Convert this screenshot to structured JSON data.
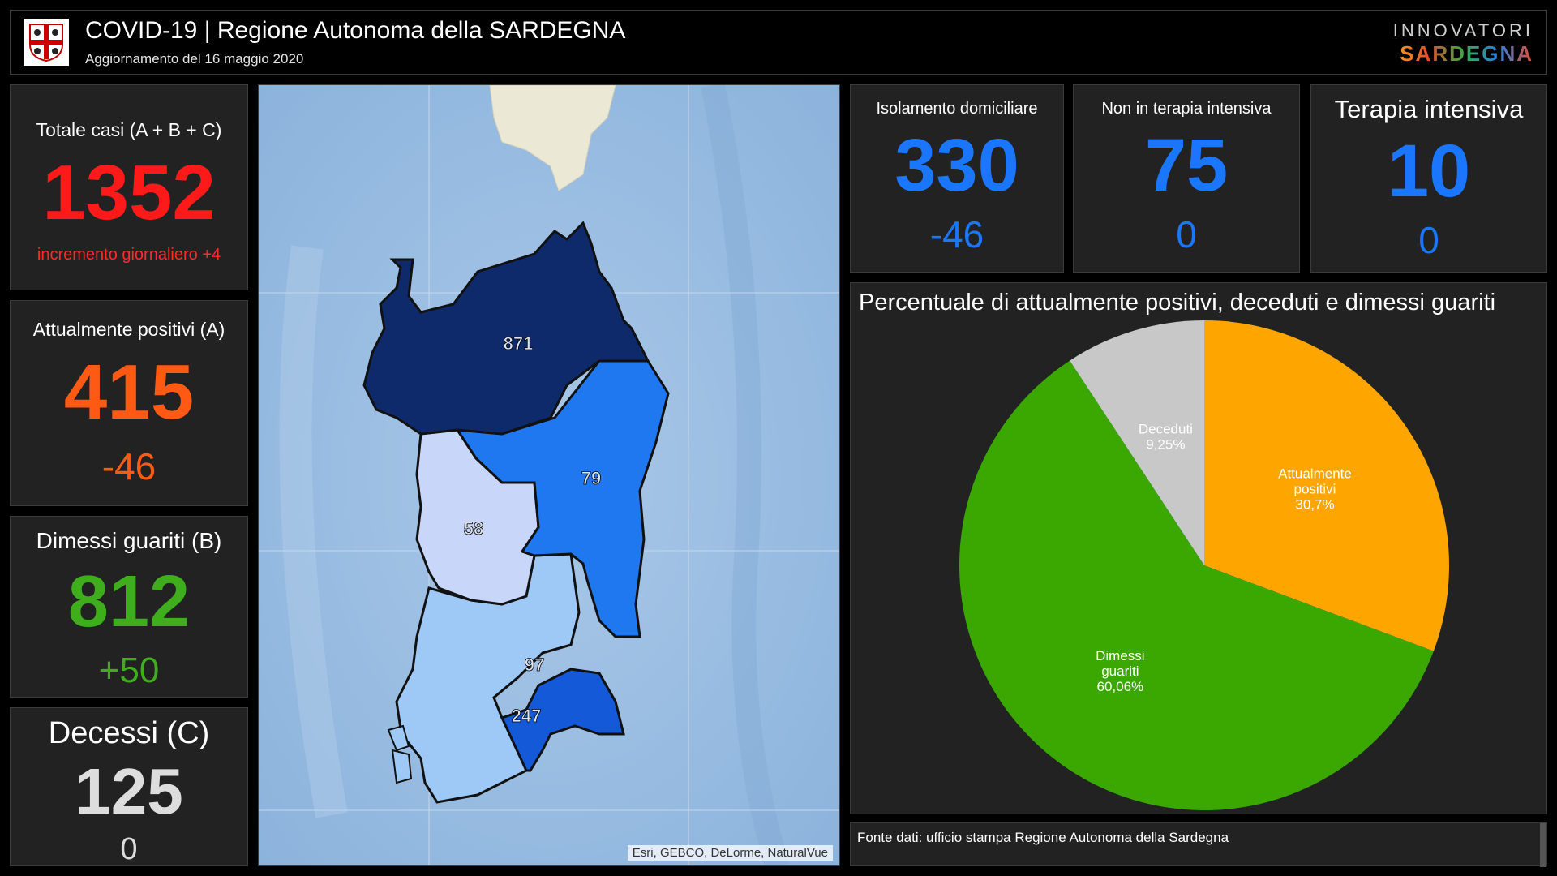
{
  "header": {
    "title": "COVID-19 | Regione Autonoma della SARDEGNA",
    "subtitle": "Aggiornamento del 16 maggio 2020",
    "brand_top": "INNOVATORI",
    "brand_bottom": "SARDEGNA"
  },
  "left_cards": {
    "totale": {
      "label": "Totale casi (A + B + C)",
      "value": "1352",
      "delta": "incremento giornaliero +4",
      "color": "#ff1a1a"
    },
    "positivi": {
      "label": "Attualmente positivi (A)",
      "value": "415",
      "delta": "-46",
      "color": "#ff5a14"
    },
    "guariti": {
      "label": "Dimessi guariti (B)",
      "value": "812",
      "delta": "+50",
      "color": "#3fae1c"
    },
    "decessi": {
      "label": "Decessi (C)",
      "value": "125",
      "delta": "0",
      "color": "#dddddd"
    }
  },
  "top_cards": {
    "isolamento": {
      "label": "Isolamento domiciliare",
      "value": "330",
      "delta": "-46",
      "color": "#1a75ff"
    },
    "non_intensiva": {
      "label": "Non in terapia intensiva",
      "value": "75",
      "delta": "0",
      "color": "#1a75ff"
    },
    "intensiva": {
      "label": "Terapia intensiva",
      "value": "10",
      "delta": "0",
      "color": "#1a75ff"
    }
  },
  "map": {
    "regions": [
      {
        "label": "871",
        "color": "#0f2a6b"
      },
      {
        "label": "79",
        "color": "#1f78f0"
      },
      {
        "label": "58",
        "color": "#c8d6fa"
      },
      {
        "label": "97",
        "color": "#9ec8f5"
      },
      {
        "label": "247",
        "color": "#1459d8"
      }
    ],
    "attribution": "Esri, GEBCO, DeLorme, NaturalVue"
  },
  "chart_data": {
    "type": "pie",
    "title": "Percentuale di attualmente positivi, deceduti e dimessi guariti",
    "slices": [
      {
        "name": "Attualmente positivi",
        "label": "30,7%",
        "value": 30.7,
        "color": "#ffa500"
      },
      {
        "name": "Dimessi guariti",
        "label": "60,06%",
        "value": 60.06,
        "color": "#3aa800"
      },
      {
        "name": "Deceduti",
        "label": "9,25%",
        "value": 9.25,
        "color": "#c8c8c8"
      }
    ]
  },
  "source": "Fonte dati: ufficio stampa Regione Autonoma della Sardegna"
}
